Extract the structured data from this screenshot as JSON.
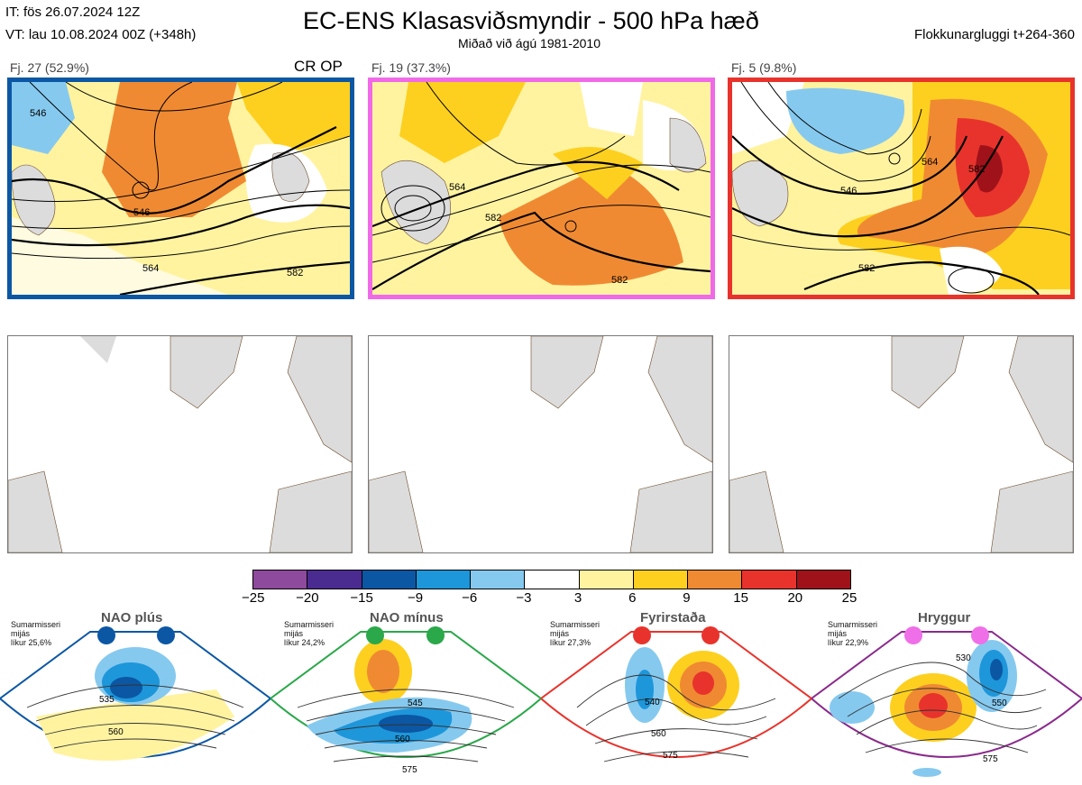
{
  "header": {
    "it": "IT: fös 26.07.2024 12Z",
    "vt": "VT: lau 10.08.2024 00Z  (+348h)",
    "title": "EC-ENS Klasasviðsmyndir - 500 hPa hæð",
    "subtitle": "Miðað við ágú 1981-2010",
    "window": "Flokkunargluggi t+264-360"
  },
  "clusters": [
    {
      "label": "Fj. 27 (52.9%)",
      "tag": "CR OP",
      "color": "#0b57a4",
      "contours": [
        "546",
        "546",
        "564",
        "582"
      ]
    },
    {
      "label": "Fj. 19 (37.3%)",
      "tag": "",
      "color": "#f06ae8",
      "contours": [
        "564",
        "582",
        "582"
      ]
    },
    {
      "label": "Fj. 5 (9.8%)",
      "tag": "",
      "color": "#e8332c",
      "contours": [
        "546",
        "564",
        "582",
        "582"
      ]
    }
  ],
  "colorbar": {
    "ticks": [
      "−25",
      "−20",
      "−15",
      "−9",
      "−6",
      "−3",
      "3",
      "6",
      "9",
      "15",
      "20",
      "25"
    ],
    "colors": [
      "#8e4a9c",
      "#4a2c91",
      "#0b57a4",
      "#1e96da",
      "#86c9ef",
      "#ffffff",
      "#fff3a0",
      "#fdd020",
      "#f08a32",
      "#e8332c",
      "#a0121a"
    ]
  },
  "regimes": [
    {
      "name": "NAO plús",
      "season": "Sumarmisseri\nmijás\nlíkur 25,6%",
      "color": "#0b57a4",
      "dot": "#0b57a4",
      "contours": [
        "535",
        "560"
      ]
    },
    {
      "name": "NAO mínus",
      "season": "Sumarmisseri\nmijás\nlíkur 24,2%",
      "color": "#2aa84a",
      "dot": "#2aa84a",
      "contours": [
        "545",
        "560",
        "575"
      ]
    },
    {
      "name": "Fyrirstaða",
      "season": "Sumarmisseri\nmijás\nlíkur 27,3%",
      "color": "#e8332c",
      "dot": "#e8332c",
      "contours": [
        "540",
        "560",
        "575"
      ]
    },
    {
      "name": "Hryggur",
      "season": "Sumarmisseri\nmijás\nlíkur 22,9%",
      "color": "#8a2a8c",
      "dot": "#ef6fe8",
      "contours": [
        "530",
        "550",
        "575"
      ]
    }
  ],
  "chart_data": {
    "type": "heatmap",
    "title": "EC-ENS Klasasviðsmyndir - 500 hPa hæð",
    "colorbar_ticks": [
      -25,
      -20,
      -15,
      -9,
      -6,
      -3,
      3,
      6,
      9,
      15,
      20,
      25
    ],
    "clusters": [
      {
        "name": "Fj. 27",
        "percent": 52.9
      },
      {
        "name": "Fj. 19",
        "percent": 37.3
      },
      {
        "name": "Fj. 5",
        "percent": 9.8
      }
    ],
    "regimes": [
      {
        "name": "NAO plús",
        "likelihood_percent": 25.6
      },
      {
        "name": "NAO mínus",
        "likelihood_percent": 24.2
      },
      {
        "name": "Fyrirstaða",
        "likelihood_percent": 27.3
      },
      {
        "name": "Hryggur",
        "likelihood_percent": 22.9
      }
    ]
  }
}
